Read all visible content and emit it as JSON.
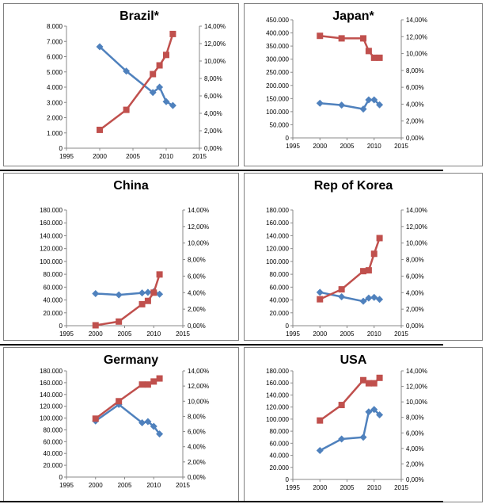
{
  "chart_data": [
    {
      "type": "line",
      "title": "Brazil*",
      "x": [
        2000,
        2004,
        2008,
        2009,
        2010,
        2011
      ],
      "xlim": [
        1995,
        2015
      ],
      "xticks": [
        "1995",
        "2000",
        "2005",
        "2010",
        "2015"
      ],
      "ylim": [
        0,
        8000
      ],
      "yticks": [
        "0",
        "1.000",
        "2.000",
        "3.000",
        "4.000",
        "5.000",
        "6.000",
        "7.000",
        "8.000"
      ],
      "y2lim": [
        0,
        14
      ],
      "y2ticks": [
        "0,00%",
        "2,00%",
        "4,00%",
        "6,00%",
        "8,00%",
        "10,00%",
        "12,00%",
        "14,00%"
      ],
      "series": [
        {
          "axis": "left",
          "color": "#4f81bd",
          "marker": "diamond",
          "x": [
            2000,
            2004,
            2008,
            2009,
            2010,
            2011
          ],
          "values": [
            6650,
            5050,
            3650,
            4000,
            3050,
            2800
          ]
        },
        {
          "axis": "right",
          "color": "#c0504d",
          "marker": "square",
          "x": [
            2000,
            2004,
            2008,
            2009,
            2010,
            2011
          ],
          "values": [
            2.1,
            4.4,
            8.5,
            9.5,
            10.7,
            13.1
          ]
        }
      ]
    },
    {
      "type": "line",
      "title": "Japan*",
      "xlim": [
        1995,
        2015
      ],
      "xticks": [
        "1995",
        "2000",
        "2005",
        "2010",
        "2015"
      ],
      "ylim": [
        0,
        450000
      ],
      "yticks": [
        "0",
        "50.000",
        "100.000",
        "150.000",
        "200.000",
        "250.000",
        "300.000",
        "350.000",
        "400.000",
        "450.000"
      ],
      "y2lim": [
        0,
        14
      ],
      "y2ticks": [
        "0,00%",
        "2,00%",
        "4,00%",
        "6,00%",
        "8,00%",
        "10,00%",
        "12,00%",
        "14,00%"
      ],
      "series": [
        {
          "axis": "left",
          "color": "#4f81bd",
          "marker": "diamond",
          "x": [
            2000,
            2004,
            2008,
            2009,
            2010,
            2011
          ],
          "values": [
            132000,
            125000,
            110000,
            145000,
            145000,
            126000
          ]
        },
        {
          "axis": "right",
          "color": "#c0504d",
          "marker": "square",
          "x": [
            2000,
            2004,
            2008,
            2009,
            2010,
            2011
          ],
          "values": [
            12.1,
            11.8,
            11.8,
            10.3,
            9.5,
            9.5
          ]
        }
      ]
    },
    {
      "type": "line",
      "title": "China",
      "xlim": [
        1995,
        2015
      ],
      "xticks": [
        "1995",
        "2000",
        "2005",
        "2010",
        "2015"
      ],
      "ylim": [
        0,
        180000
      ],
      "yticks": [
        "0",
        "20.000",
        "40.000",
        "60.000",
        "80.000",
        "100.000",
        "120.000",
        "140.000",
        "160.000",
        "180.000"
      ],
      "y2lim": [
        0,
        14
      ],
      "y2ticks": [
        "0,00%",
        "2,00%",
        "4,00%",
        "6,00%",
        "8,00%",
        "10,00%",
        "12,00%",
        "14,00%"
      ],
      "series": [
        {
          "axis": "left",
          "color": "#4f81bd",
          "marker": "diamond",
          "x": [
            2000,
            2004,
            2008,
            2009,
            2010,
            2011
          ],
          "values": [
            50000,
            48000,
            51000,
            52000,
            53000,
            49000
          ]
        },
        {
          "axis": "right",
          "color": "#c0504d",
          "marker": "square",
          "x": [
            2000,
            2004,
            2008,
            2009,
            2010,
            2011
          ],
          "values": [
            0.05,
            0.5,
            2.6,
            3.0,
            4.0,
            6.2
          ]
        }
      ]
    },
    {
      "type": "line",
      "title": "Rep of Korea",
      "xlim": [
        1995,
        2015
      ],
      "xticks": [
        "1995",
        "2000",
        "2005",
        "2010",
        "2015"
      ],
      "ylim": [
        0,
        180000
      ],
      "yticks": [
        "0",
        "20.000",
        "40.000",
        "60.000",
        "80.000",
        "100.000",
        "120.000",
        "140.000",
        "160.000",
        "180.000"
      ],
      "y2lim": [
        0,
        14
      ],
      "y2ticks": [
        "0,00%",
        "2,00%",
        "4,00%",
        "6,00%",
        "8,00%",
        "10,00%",
        "12,00%",
        "14,00%"
      ],
      "series": [
        {
          "axis": "left",
          "color": "#4f81bd",
          "marker": "diamond",
          "x": [
            2000,
            2004,
            2008,
            2009,
            2010,
            2011
          ],
          "values": [
            52000,
            45000,
            38000,
            43000,
            44000,
            41000
          ]
        },
        {
          "axis": "right",
          "color": "#c0504d",
          "marker": "square",
          "x": [
            2000,
            2004,
            2008,
            2009,
            2010,
            2011
          ],
          "values": [
            3.2,
            4.4,
            6.6,
            6.7,
            8.7,
            10.6
          ]
        }
      ]
    },
    {
      "type": "line",
      "title": "Germany",
      "xlim": [
        1995,
        2015
      ],
      "xticks": [
        "1995",
        "2000",
        "2005",
        "2010",
        "2015"
      ],
      "ylim": [
        0,
        180000
      ],
      "yticks": [
        "0",
        "20.000",
        "40.000",
        "60.000",
        "80.000",
        "100.000",
        "120.000",
        "140.000",
        "160.000",
        "180.000"
      ],
      "y2lim": [
        0,
        14
      ],
      "y2ticks": [
        "0,00%",
        "2,00%",
        "4,00%",
        "6,00%",
        "8,00%",
        "10,00%",
        "12,00%",
        "14,00%"
      ],
      "series": [
        {
          "axis": "left",
          "color": "#4f81bd",
          "marker": "diamond",
          "x": [
            2000,
            2004,
            2008,
            2009,
            2010,
            2011
          ],
          "values": [
            95000,
            123000,
            92000,
            94000,
            86000,
            73000
          ]
        },
        {
          "axis": "right",
          "color": "#c0504d",
          "marker": "square",
          "x": [
            2000,
            2004,
            2008,
            2009,
            2010,
            2011
          ],
          "values": [
            7.7,
            10.0,
            12.2,
            12.2,
            12.6,
            13.0
          ]
        }
      ]
    },
    {
      "type": "line",
      "title": "USA",
      "xlim": [
        1995,
        2015
      ],
      "xticks": [
        "1995",
        "2000",
        "2005",
        "2010",
        "2015"
      ],
      "ylim": [
        0,
        180000
      ],
      "yticks": [
        "0",
        "20.000",
        "40.000",
        "60.000",
        "80.000",
        "100.000",
        "120.000",
        "140.000",
        "160.000",
        "180.000"
      ],
      "y2lim": [
        0,
        14
      ],
      "y2ticks": [
        "0,00%",
        "2,00%",
        "4,00%",
        "6,00%",
        "8,00%",
        "10,00%",
        "12,00%",
        "14,00%"
      ],
      "series": [
        {
          "axis": "left",
          "color": "#4f81bd",
          "marker": "diamond",
          "x": [
            2000,
            2004,
            2008,
            2009,
            2010,
            2011
          ],
          "values": [
            48000,
            67000,
            70000,
            112000,
            116000,
            107000
          ]
        },
        {
          "axis": "right",
          "color": "#c0504d",
          "marker": "square",
          "x": [
            2000,
            2004,
            2008,
            2009,
            2010,
            2011
          ],
          "values": [
            7.6,
            9.6,
            12.8,
            12.4,
            12.4,
            13.1
          ]
        }
      ]
    }
  ]
}
